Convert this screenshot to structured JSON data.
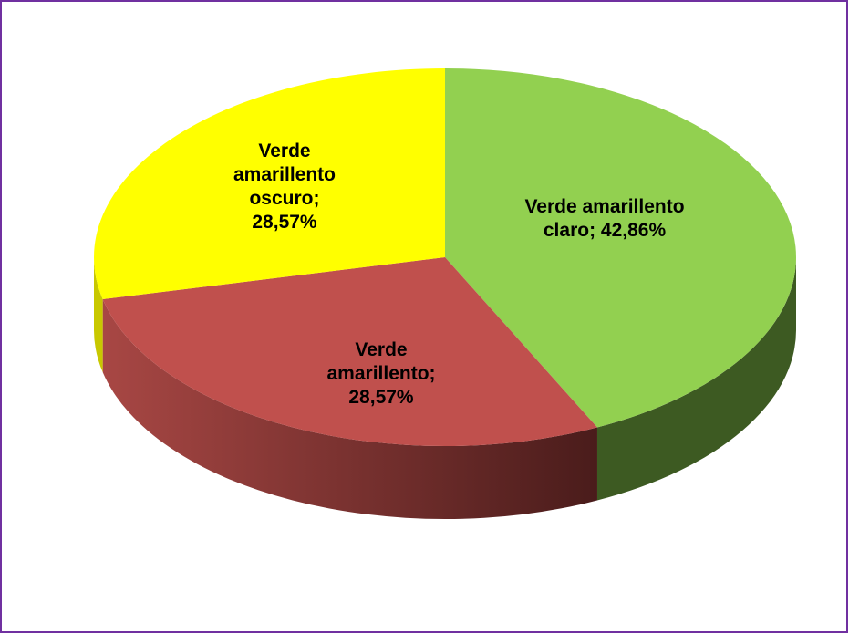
{
  "chart_data": {
    "type": "pie3d",
    "values": [
      42.86,
      28.57,
      28.57
    ],
    "value_labels": [
      "Verde amarillento claro; 42,86%",
      "Verde amarillento; 28,57%",
      "Verde amarillento oscuro; 28,57%"
    ],
    "colors": [
      "#92d050",
      "#c0504d",
      "#ffff00"
    ]
  }
}
